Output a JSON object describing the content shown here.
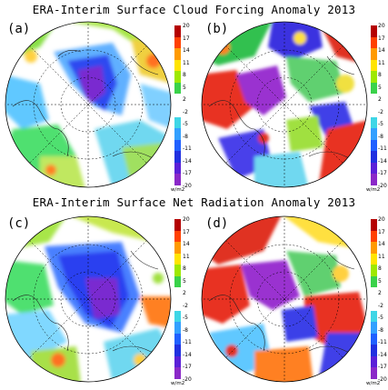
{
  "titles": {
    "top": "ERA-Interim Surface Cloud Forcing Anomaly 2013",
    "bottom": "ERA-Interim Surface Net Radiation Anomaly 2013"
  },
  "panels": [
    {
      "label": "(a)"
    },
    {
      "label": "(b)"
    },
    {
      "label": "(c)"
    },
    {
      "label": "(d)"
    }
  ],
  "colorbar": {
    "ticks": [
      "20",
      "17",
      "14",
      "11",
      "8",
      "5",
      "2",
      "-2",
      "-5",
      "-8",
      "-11",
      "-14",
      "-17",
      "-20"
    ],
    "unit": "w/m2",
    "colors": [
      "#b40000",
      "#ff4000",
      "#ff9a00",
      "#ffe400",
      "#9ee800",
      "#3ad24a",
      "#ffffff",
      "#ffffff",
      "#3fd6e6",
      "#33a0ff",
      "#2060ff",
      "#2030e0",
      "#5a20d8",
      "#8a28c8"
    ]
  }
}
